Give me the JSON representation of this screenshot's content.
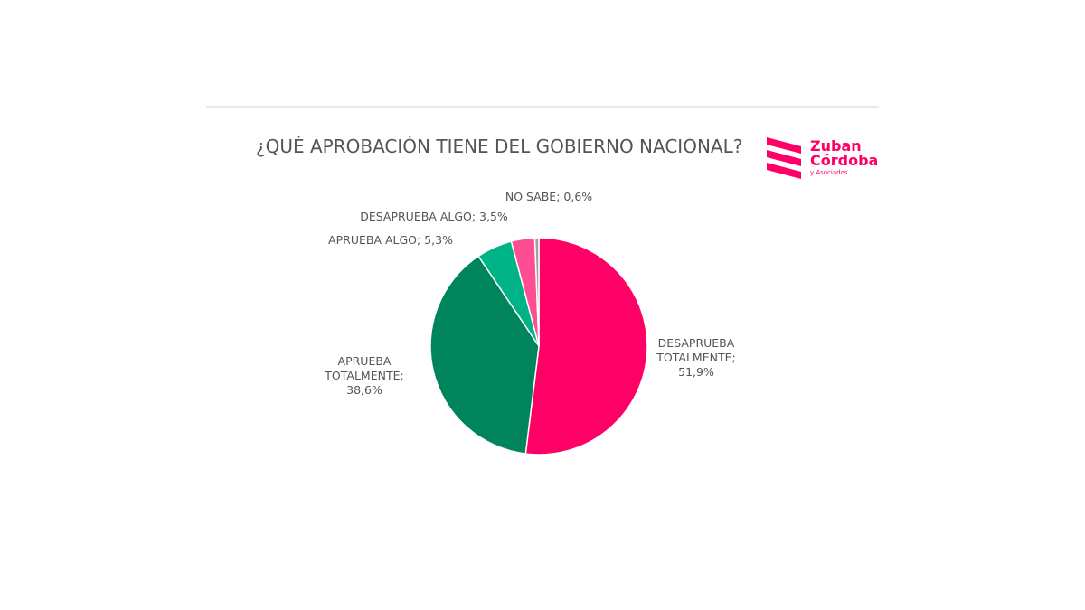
{
  "chart_data": {
    "type": "pie",
    "title": "¿QUÉ APROBACIÓN TIENE DEL GOBIERNO NACIONAL?",
    "values": [
      51.9,
      38.6,
      5.3,
      3.5,
      0.6
    ],
    "value_labels": [
      "DESAPRUEBA TOTALMENTE; 51,9%",
      "APRUEBA TOTALMENTE; 38,6%",
      "APRUEBA ALGO; 5,3%",
      "DESAPRUEBA ALGO; 3,5%",
      "NO SABE; 0,6%"
    ],
    "colors": [
      "#ff0066",
      "#00845c",
      "#00b386",
      "#ff4d94",
      "#a0a0a0"
    ]
  },
  "logo": {
    "line1": "Zuban",
    "line2": "Córdoba",
    "line3": "y Asociados"
  }
}
